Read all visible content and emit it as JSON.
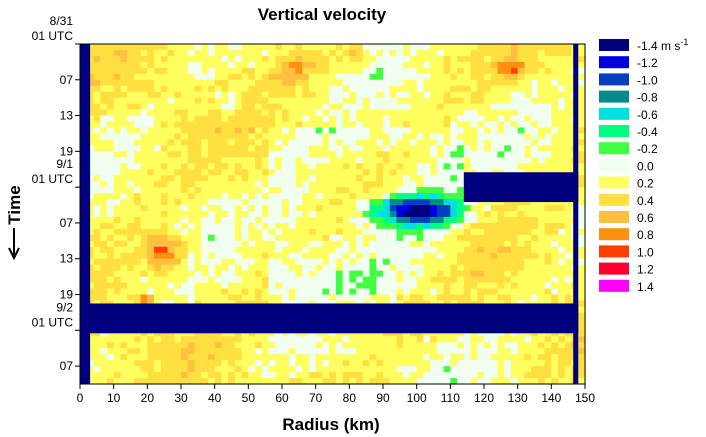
{
  "chart_data": {
    "type": "heatmap",
    "title": "Vertical velocity",
    "xlabel": "Radius (km)",
    "ylabel": "Time",
    "xlim": [
      0,
      150
    ],
    "x_ticks": [
      "0",
      "10",
      "20",
      "30",
      "40",
      "50",
      "60",
      "70",
      "80",
      "90",
      "100",
      "110",
      "120",
      "130",
      "140",
      "150"
    ],
    "y_ticks": [
      {
        "l1": "8/31",
        "l2": "01 UTC"
      },
      {
        "l1": "07",
        "l2": ""
      },
      {
        "l1": "13",
        "l2": ""
      },
      {
        "l1": "19",
        "l2": ""
      },
      {
        "l1": "9/1",
        "l2": "01 UTC"
      },
      {
        "l1": "07",
        "l2": ""
      },
      {
        "l1": "13",
        "l2": ""
      },
      {
        "l1": "19",
        "l2": ""
      },
      {
        "l1": "9/2",
        "l2": "01 UTC"
      },
      {
        "l1": "07",
        "l2": ""
      }
    ],
    "y_tick_hours": [
      0,
      6,
      12,
      18,
      24,
      30,
      36,
      42,
      48,
      54
    ],
    "time_range_hours": [
      0,
      57
    ],
    "missing_data_blocks": [
      {
        "x": [
          114,
          148
        ],
        "t": [
          21.5,
          26.5
        ]
      },
      {
        "x": [
          0,
          148
        ],
        "t": [
          43.5,
          48.5
        ]
      },
      {
        "x": [
          0,
          3
        ],
        "t": [
          0,
          57
        ]
      },
      {
        "x": [
          146.5,
          148
        ],
        "t": [
          0,
          57
        ]
      }
    ],
    "features": [
      {
        "x": 100,
        "t": 28,
        "rx": 12,
        "rt": 2.5,
        "value": -1.4
      },
      {
        "x": 25,
        "t": 35,
        "rx": 6,
        "rt": 3,
        "value": 1.0
      },
      {
        "x": 19,
        "t": 43,
        "rx": 3,
        "rt": 1,
        "value": 1.0
      },
      {
        "x": 128,
        "t": 4,
        "rx": 4,
        "rt": 2,
        "value": 0.8
      },
      {
        "x": 64,
        "t": 4,
        "rx": 6,
        "rt": 2.5,
        "value": 0.6
      },
      {
        "x": 44,
        "t": 10,
        "rx": 3,
        "rt": 2,
        "value": -0.2
      },
      {
        "x": 82,
        "t": 2,
        "rx": 4,
        "rt": 1.5,
        "value": 0.6
      }
    ],
    "legend_title": "",
    "legend": [
      {
        "label": "-1.4 m s",
        "sup": "-1",
        "color": "#00007f"
      },
      {
        "label": "-1.2",
        "color": "#0000e0"
      },
      {
        "label": "-1.0",
        "color": "#0040c0"
      },
      {
        "label": "-0.8",
        "color": "#008b8b"
      },
      {
        "label": "-0.6",
        "color": "#00e0e0"
      },
      {
        "label": "-0.4",
        "color": "#00ff80"
      },
      {
        "label": "-0.2",
        "color": "#40ff40"
      },
      {
        "label": "0.0",
        "color": "#f0fff0"
      },
      {
        "label": "0.2",
        "color": "#ffff60"
      },
      {
        "label": "0.4",
        "color": "#ffe040"
      },
      {
        "label": "0.6",
        "color": "#ffc040"
      },
      {
        "label": "0.8",
        "color": "#ff9010"
      },
      {
        "label": "1.0",
        "color": "#ff4000"
      },
      {
        "label": "1.2",
        "color": "#ff0030"
      },
      {
        "label": "1.4",
        "color": "#ff00ff"
      }
    ],
    "missing_color": "#00007f"
  }
}
